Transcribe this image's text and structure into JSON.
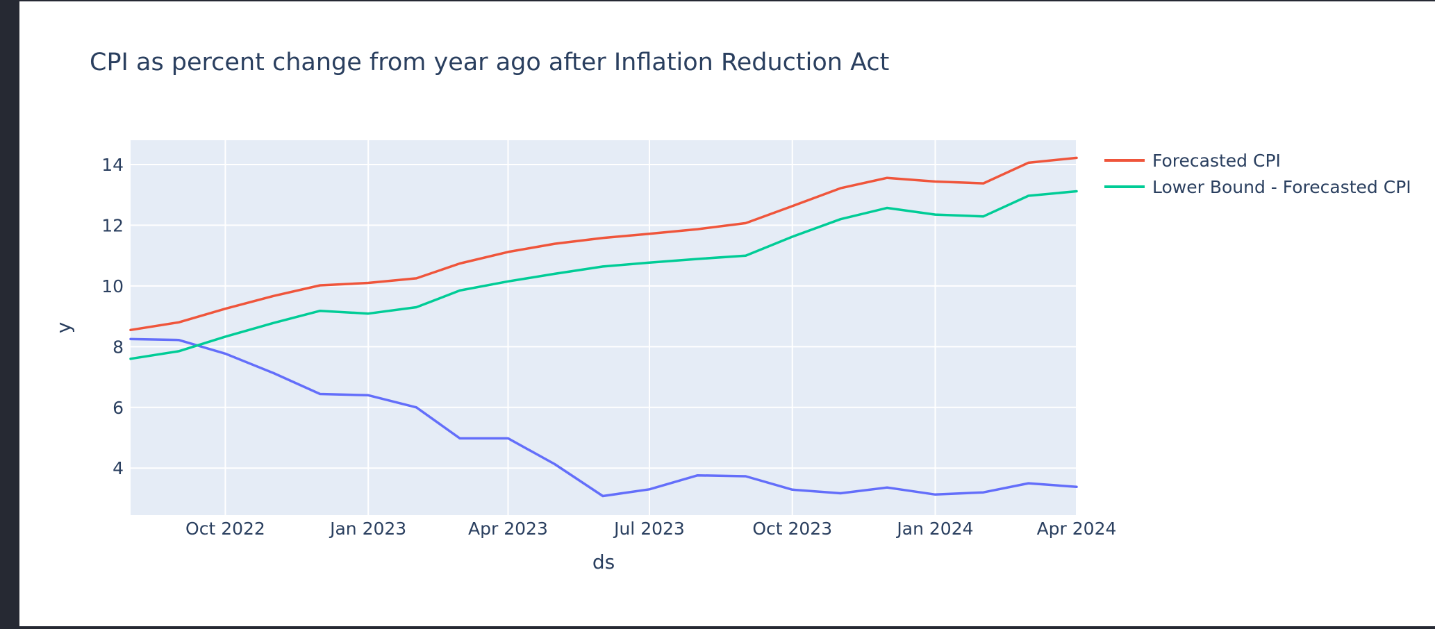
{
  "chart_data": {
    "type": "line",
    "title": "CPI as percent change from year ago after Inflation Reduction Act",
    "xlabel": "ds",
    "ylabel": "y",
    "x_range": [
      "2022-08-01",
      "2024-04-01"
    ],
    "y_range": [
      2.45,
      14.8
    ],
    "x_ticks": [
      {
        "date": "2022-10-01",
        "label": "Oct 2022"
      },
      {
        "date": "2023-01-01",
        "label": "Jan 2023"
      },
      {
        "date": "2023-04-01",
        "label": "Apr 2023"
      },
      {
        "date": "2023-07-01",
        "label": "Jul 2023"
      },
      {
        "date": "2023-10-01",
        "label": "Oct 2023"
      },
      {
        "date": "2024-01-01",
        "label": "Jan 2024"
      },
      {
        "date": "2024-04-01",
        "label": "Apr 2024"
      }
    ],
    "y_ticks": [
      {
        "value": 4,
        "label": "4"
      },
      {
        "value": 6,
        "label": "6"
      },
      {
        "value": 8,
        "label": "8"
      },
      {
        "value": 10,
        "label": "10"
      },
      {
        "value": 12,
        "label": "12"
      },
      {
        "value": 14,
        "label": "14"
      }
    ],
    "grid": true,
    "legend_position": "top-right",
    "x": [
      "2022-08-01",
      "2022-09-01",
      "2022-10-01",
      "2022-11-01",
      "2022-12-01",
      "2023-01-01",
      "2023-02-01",
      "2023-03-01",
      "2023-04-01",
      "2023-05-01",
      "2023-06-01",
      "2023-07-01",
      "2023-08-01",
      "2023-09-01",
      "2023-10-01",
      "2023-11-01",
      "2023-12-01",
      "2024-01-01",
      "2024-02-01",
      "2024-03-01",
      "2024-04-01"
    ],
    "series": [
      {
        "name": "",
        "color": "#636efa",
        "show_in_legend": false,
        "values": [
          8.25,
          8.22,
          7.77,
          7.13,
          6.44,
          6.4,
          6.0,
          4.98,
          4.98,
          4.13,
          3.08,
          3.3,
          3.76,
          3.73,
          3.29,
          3.17,
          3.36,
          3.13,
          3.2,
          3.5,
          3.38
        ]
      },
      {
        "name": "Forecasted CPI",
        "color": "#ef553b",
        "show_in_legend": true,
        "values": [
          8.55,
          8.8,
          9.25,
          9.67,
          10.02,
          10.1,
          10.25,
          10.74,
          11.12,
          11.39,
          11.58,
          11.72,
          11.87,
          12.07,
          12.63,
          13.22,
          13.56,
          13.44,
          13.38,
          14.06,
          14.22
        ]
      },
      {
        "name": "Lower Bound - Forecasted CPI",
        "color": "#00cc96",
        "show_in_legend": true,
        "values": [
          7.6,
          7.85,
          8.33,
          8.78,
          9.18,
          9.09,
          9.3,
          9.85,
          10.15,
          10.4,
          10.64,
          10.77,
          10.89,
          11.0,
          11.62,
          12.2,
          12.57,
          12.35,
          12.29,
          12.97,
          13.12
        ]
      }
    ]
  }
}
